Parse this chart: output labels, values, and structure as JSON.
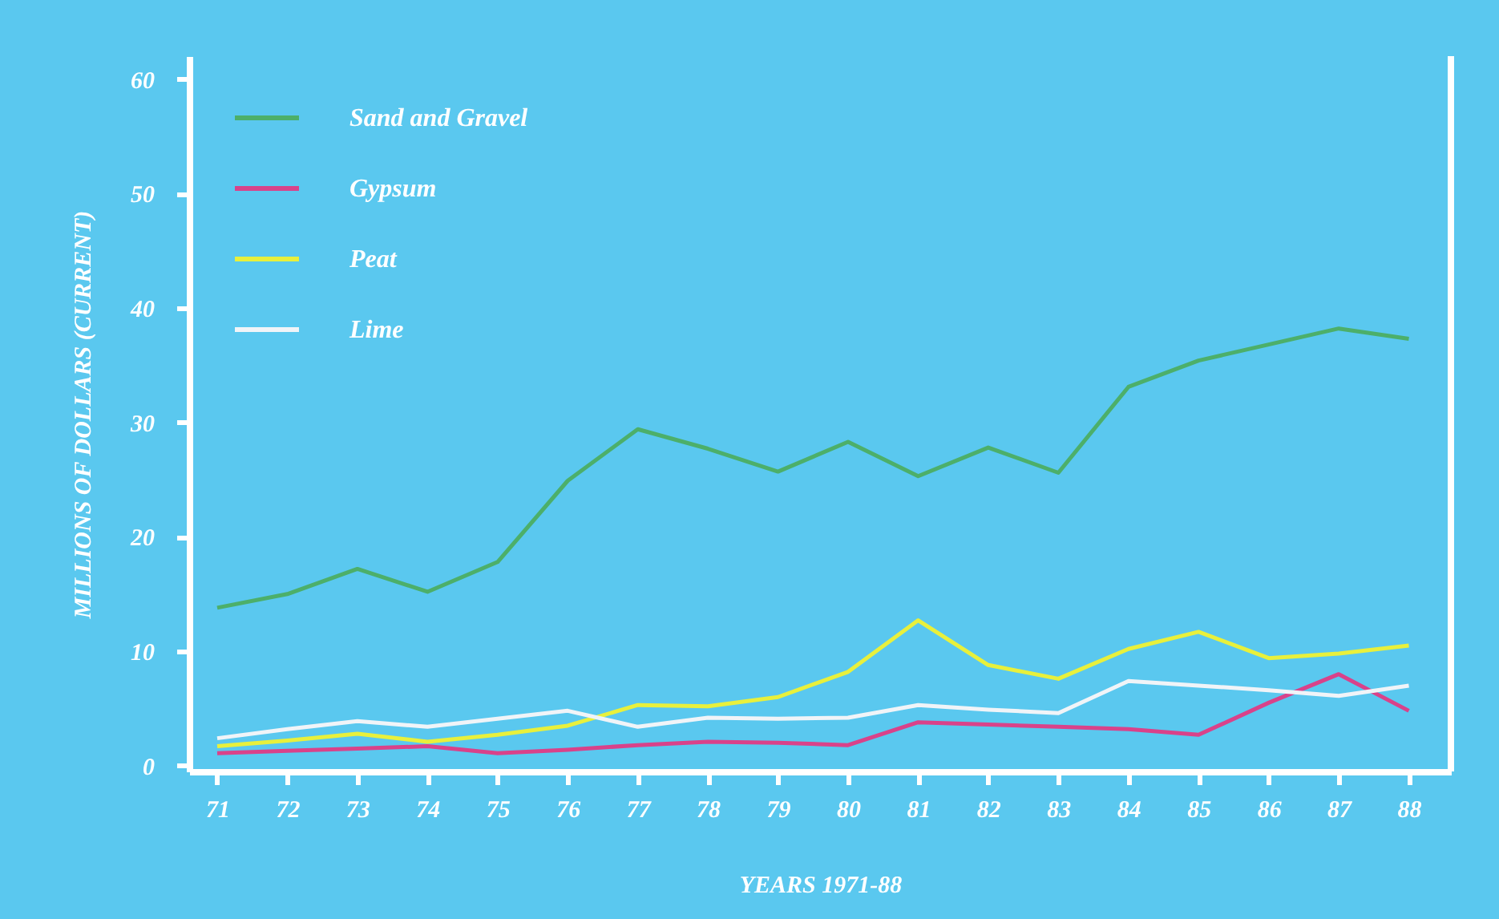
{
  "chart_data": {
    "type": "line",
    "xlabel": "YEARS 1971-88",
    "ylabel": "MILLIONS OF DOLLARS (CURRENT)",
    "x": [
      71,
      72,
      73,
      74,
      75,
      76,
      77,
      78,
      79,
      80,
      81,
      82,
      83,
      84,
      85,
      86,
      87,
      88
    ],
    "series": [
      {
        "name": "Sand and Gravel",
        "color": "#4caf6a",
        "values": [
          13.8,
          15,
          17.2,
          15.2,
          17.8,
          24.9,
          29.4,
          27.7,
          25.7,
          28.3,
          25.3,
          27.8,
          25.6,
          33.1,
          35.4,
          36.8,
          38.2,
          37.3
        ]
      },
      {
        "name": "Gypsum",
        "color": "#d9428a",
        "values": [
          1.1,
          1.3,
          1.5,
          1.7,
          1.1,
          1.4,
          1.8,
          2.1,
          2.0,
          1.8,
          3.8,
          3.6,
          3.4,
          3.2,
          2.7,
          5.5,
          8.0,
          4.8
        ]
      },
      {
        "name": "Peat",
        "color": "#e8f03c",
        "values": [
          1.7,
          2.2,
          2.8,
          2.1,
          2.7,
          3.5,
          5.3,
          5.2,
          6.0,
          8.2,
          12.7,
          8.8,
          7.6,
          10.2,
          11.7,
          9.4,
          9.8,
          10.5
        ]
      },
      {
        "name": "Lime",
        "color": "#f0f4f8",
        "values": [
          2.4,
          3.2,
          3.9,
          3.4,
          4.1,
          4.8,
          3.4,
          4.2,
          4.1,
          4.2,
          5.3,
          4.9,
          4.6,
          7.4,
          7.0,
          6.6,
          6.1,
          7.0
        ]
      }
    ],
    "xlim": [
      70.6,
      88.6
    ],
    "xticks": [
      71,
      72,
      73,
      74,
      75,
      76,
      77,
      78,
      79,
      80,
      81,
      82,
      83,
      84,
      85,
      86,
      87,
      88
    ],
    "ylim": [
      -0.5,
      62
    ],
    "yticks": [
      0,
      10,
      20,
      30,
      40,
      50,
      60
    ],
    "grid": false,
    "legend": "top left",
    "marker": "none",
    "line_style": "solid"
  }
}
